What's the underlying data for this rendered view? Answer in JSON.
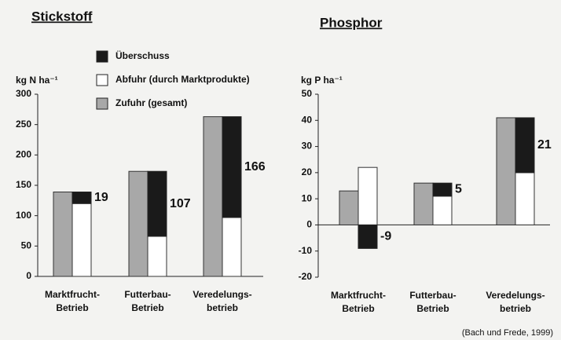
{
  "chart_data": [
    {
      "type": "bar",
      "title": "Stickstoff",
      "ylabel": "kg N ha⁻¹",
      "categories": [
        "Marktfrucht-\nBetrieb",
        "Futterbau-\nBetrieb",
        "Veredelungs-\nbetrieb"
      ],
      "series": [
        {
          "name": "Überschuss",
          "color": "#1a1a1a",
          "values": [
            19,
            107,
            166
          ]
        },
        {
          "name": "Abfuhr (durch Marktprodukte)",
          "color": "#ffffff",
          "values": [
            120,
            66,
            97
          ]
        },
        {
          "name": "Zufuhr (gesamt)",
          "color": "#a8a8a8",
          "values": [
            139,
            173,
            263
          ]
        }
      ],
      "ylim": [
        0,
        300
      ],
      "yticks": [
        0,
        50,
        100,
        150,
        200,
        250,
        300
      ]
    },
    {
      "type": "bar",
      "title": "Phosphor",
      "ylabel": "kg P ha⁻¹",
      "categories": [
        "Marktfrucht-\nBetrieb",
        "Futterbau-\nBetrieb",
        "Veredelungs-\nbetrieb"
      ],
      "series": [
        {
          "color": "#1a1a1a",
          "values": [
            -9,
            5,
            21
          ]
        },
        {
          "color": "#ffffff",
          "values": [
            22,
            11,
            20
          ]
        },
        {
          "color": "#a8a8a8",
          "values": [
            13,
            16,
            41
          ]
        }
      ],
      "ylim": [
        -20,
        50
      ],
      "yticks": [
        -20,
        -10,
        0,
        10,
        20,
        30,
        40,
        50
      ]
    }
  ],
  "source": "(Bach und Frede, 1999)"
}
